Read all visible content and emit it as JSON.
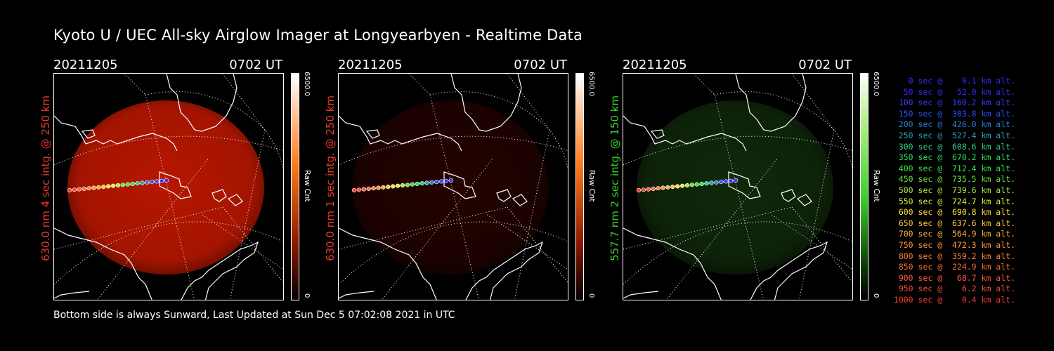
{
  "title": "Kyoto U / UEC All-sky Airglow Imager at Longyearbyen - Realtime Data",
  "footer": "Bottom side is always Sunward, Last Updated at Sun Dec  5 07:02:08 2021 in UTC",
  "panels": [
    {
      "date": "20211205",
      "time": "0702 UT",
      "ylabel": "630.0 nm 4 sec intg. @ 250 km",
      "ylabel_color": "#e83a2a",
      "cbar_max": "6500.0",
      "cbar_min": "0",
      "cbar_unit": "Raw Cnt",
      "emission_color": "#c01800",
      "emission_intensity": 0.85
    },
    {
      "date": "20211205",
      "time": "0702 UT",
      "ylabel": "630.0 nm 1 sec intg. @ 250 km",
      "ylabel_color": "#e83a2a",
      "cbar_max": "6500.0",
      "cbar_min": "0",
      "cbar_unit": "Raw Cnt",
      "emission_color": "#5a0800",
      "emission_intensity": 0.3
    },
    {
      "date": "20211205",
      "time": "0702 UT",
      "ylabel": "557.7 nm 2 sec intg. @ 150 km",
      "ylabel_color": "#3ad12a",
      "cbar_max": "6500.0",
      "cbar_min": "0",
      "cbar_unit": "Raw Cnt",
      "emission_color": "#1c4a12",
      "emission_intensity": 0.45
    }
  ],
  "legend": [
    {
      "text": "   0 sec @    0.1 km alt.",
      "color": "#3a2aff"
    },
    {
      "text": "  50 sec @   52.0 km alt.",
      "color": "#3a2aff"
    },
    {
      "text": " 100 sec @  160.2 km alt.",
      "color": "#3a3aff"
    },
    {
      "text": " 150 sec @  303.8 km alt.",
      "color": "#2a50ff"
    },
    {
      "text": " 200 sec @  426.0 km alt.",
      "color": "#2a80d8"
    },
    {
      "text": " 250 sec @  527.4 km alt.",
      "color": "#2aa0b8"
    },
    {
      "text": " 300 sec @  608.6 km alt.",
      "color": "#2ad08a"
    },
    {
      "text": " 350 sec @  670.2 km alt.",
      "color": "#2ae05a"
    },
    {
      "text": " 400 sec @  712.4 km alt.",
      "color": "#3ae83a"
    },
    {
      "text": " 450 sec @  735.5 km alt.",
      "color": "#6ae83a"
    },
    {
      "text": " 500 sec @  739.6 km alt.",
      "color": "#a8f03a"
    },
    {
      "text": " 550 sec @  724.7 km alt.",
      "color": "#e0f03a"
    },
    {
      "text": " 600 sec @  690.8 km alt.",
      "color": "#ffe03a"
    },
    {
      "text": " 650 sec @  637.6 km alt.",
      "color": "#ffc83a"
    },
    {
      "text": " 700 sec @  564.9 km alt.",
      "color": "#ffb03a"
    },
    {
      "text": " 750 sec @  472.3 km alt.",
      "color": "#ff983a"
    },
    {
      "text": " 800 sec @  359.2 km alt.",
      "color": "#ff803a"
    },
    {
      "text": " 850 sec @  224.9 km alt.",
      "color": "#ff6a3a"
    },
    {
      "text": " 900 sec @   68.7 km alt.",
      "color": "#ff5a3a"
    },
    {
      "text": " 950 sec @    6.2 km alt.",
      "color": "#ff4a3a"
    },
    {
      "text": "1000 sec @    0.4 km alt.",
      "color": "#ff3a2a"
    }
  ],
  "colors": {
    "cbar_red_top": "#ffffff",
    "cbar_red_mid": "#ff7a1a",
    "cbar_red_bot": "#000000",
    "cbar_green_top": "#ffffff",
    "cbar_green_mid": "#3ad12a",
    "cbar_green_bot": "#000000"
  }
}
